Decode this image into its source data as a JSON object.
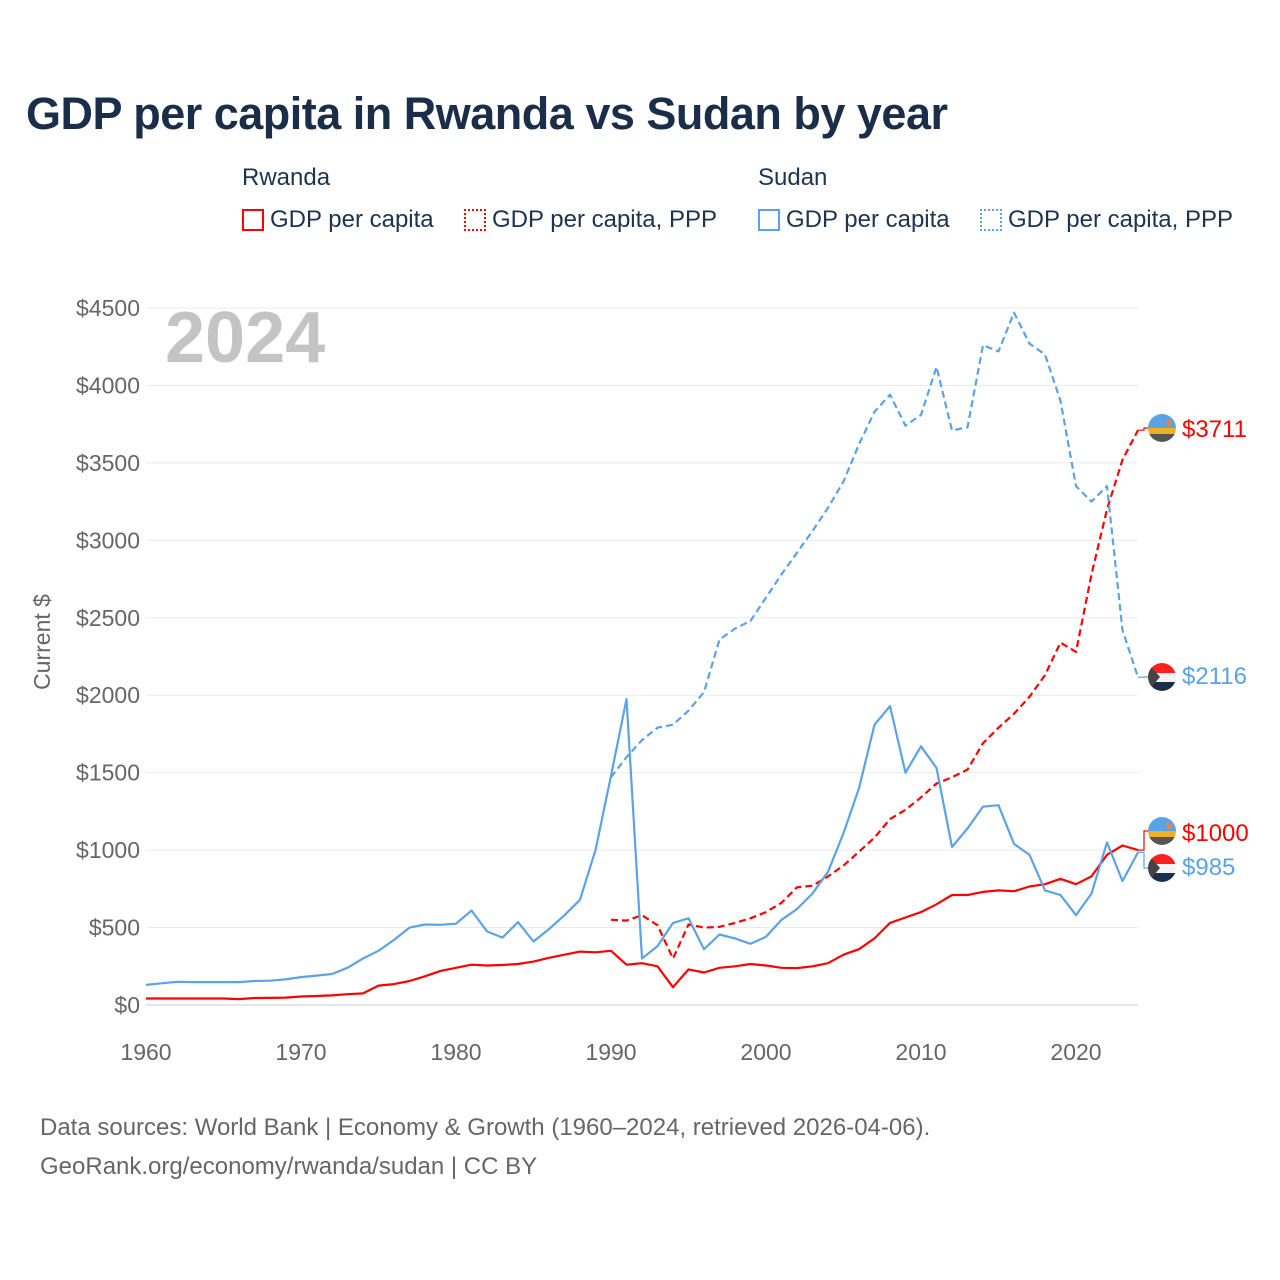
{
  "title": "GDP per capita in Rwanda vs Sudan by year",
  "legend": {
    "groups": [
      {
        "label": "Rwanda",
        "items": [
          {
            "label": "GDP per capita",
            "style": "solid",
            "color": "#ff0000"
          },
          {
            "label": "GDP per capita, PPP",
            "style": "dotted",
            "color": "#ff0000"
          }
        ]
      },
      {
        "label": "Sudan",
        "items": [
          {
            "label": "GDP per capita",
            "style": "solid",
            "color": "#5ba3e6"
          },
          {
            "label": "GDP per capita, PPP",
            "style": "dotted",
            "color": "#5ba3e6"
          }
        ]
      }
    ]
  },
  "year_watermark": "2024",
  "source": {
    "line1": "Data sources: World Bank | Economy & Growth (1960–2024, retrieved 2026-04-06).",
    "line2": "GeoRank.org/economy/rwanda/sudan | CC BY"
  },
  "chart_data": {
    "type": "line",
    "title": "GDP per capita in Rwanda vs Sudan by year",
    "xlabel": "",
    "ylabel": "Current $",
    "xlim": [
      1960,
      2024
    ],
    "ylim": [
      0,
      4500
    ],
    "x_ticks": [
      1960,
      1970,
      1980,
      1990,
      2000,
      2010,
      2020
    ],
    "x_tick_labels": [
      "1960",
      "1970",
      "1980",
      "1990",
      "2000",
      "2010",
      "2020"
    ],
    "y_ticks": [
      0,
      500,
      1000,
      1500,
      2000,
      2500,
      3000,
      3500,
      4000,
      4500
    ],
    "y_tick_labels": [
      "$0",
      "$500",
      "$1000",
      "$1500",
      "$2000",
      "$2500",
      "$3000",
      "$3500",
      "$4000",
      "$4500"
    ],
    "grid": true,
    "legend_position": "top",
    "series": [
      {
        "name": "Rwanda GDP per capita",
        "color": "#ff0000",
        "dash": false,
        "start_year": 1960,
        "end_label": "$1000",
        "values": [
          42,
          42,
          42,
          42,
          42,
          42,
          38,
          45,
          46,
          48,
          55,
          58,
          62,
          70,
          75,
          125,
          135,
          155,
          185,
          220,
          240,
          260,
          255,
          258,
          265,
          280,
          305,
          325,
          345,
          340,
          350,
          260,
          270,
          250,
          115,
          230,
          210,
          240,
          250,
          265,
          255,
          240,
          238,
          250,
          270,
          325,
          360,
          430,
          530,
          565,
          600,
          650,
          710,
          710,
          730,
          740,
          735,
          765,
          780,
          815,
          780,
          830,
          970,
          1030,
          1000
        ]
      },
      {
        "name": "Rwanda GDP per capita, PPP",
        "color": "#ff0000",
        "dash": true,
        "start_year": 1990,
        "end_label": "$3711",
        "values": [
          550,
          545,
          580,
          515,
          300,
          520,
          500,
          505,
          530,
          560,
          600,
          660,
          760,
          770,
          830,
          900,
          990,
          1080,
          1200,
          1260,
          1340,
          1430,
          1470,
          1520,
          1690,
          1790,
          1880,
          1990,
          2130,
          2340,
          2280,
          2780,
          3200,
          3520,
          3711
        ]
      },
      {
        "name": "Sudan GDP per capita",
        "color": "#5ba3e6",
        "dash": false,
        "start_year": 1960,
        "end_label": "$985",
        "values": [
          130,
          140,
          150,
          148,
          148,
          148,
          148,
          155,
          157,
          165,
          180,
          190,
          200,
          240,
          300,
          350,
          420,
          500,
          520,
          518,
          525,
          610,
          475,
          435,
          535,
          410,
          490,
          580,
          680,
          1000,
          1480,
          1975,
          300,
          380,
          530,
          560,
          360,
          455,
          430,
          395,
          440,
          550,
          620,
          720,
          860,
          1110,
          1400,
          1810,
          1930,
          1500,
          1670,
          1530,
          1020,
          1140,
          1280,
          1290,
          1040,
          970,
          740,
          710,
          580,
          720,
          1050,
          800,
          985
        ]
      },
      {
        "name": "Sudan GDP per capita, PPP",
        "color": "#5ba3e6",
        "dash": true,
        "start_year": 1990,
        "end_label": "$2116",
        "values": [
          1470,
          1600,
          1710,
          1790,
          1810,
          1900,
          2020,
          2360,
          2430,
          2480,
          2630,
          2780,
          2920,
          3060,
          3210,
          3380,
          3620,
          3830,
          3940,
          3740,
          3810,
          4120,
          3710,
          3730,
          4260,
          4220,
          4470,
          4270,
          4200,
          3900,
          3350,
          3250,
          3350,
          2420,
          2116
        ]
      }
    ]
  }
}
